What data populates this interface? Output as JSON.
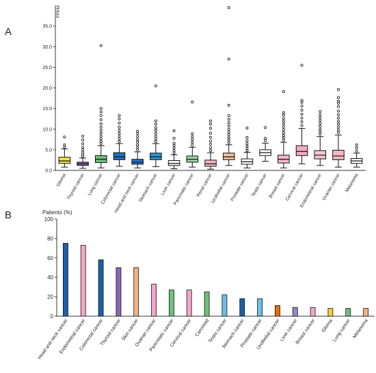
{
  "panels": {
    "a_label": "A",
    "b_label": "B"
  },
  "chart_data": [
    {
      "type": "box",
      "panel": "A",
      "ylabel": "FPKM",
      "ylim": [
        0,
        40
      ],
      "yticks": [
        "0.0",
        "5.0",
        "10.0",
        "15.0",
        "20.0",
        "25.0",
        "30.0",
        "35.0"
      ],
      "categories": [
        "Glioma",
        "Thyroid cancer",
        "Lung cancer",
        "Colorectal cancer",
        "Head and neck cancer",
        "Stomach cancer",
        "Liver cancer",
        "Pancreatic cancer",
        "Renal cancer",
        "Urothelial cancer",
        "Prostate cancer",
        "Testis cancer",
        "Breast cancer",
        "Cervical cancer",
        "Endometrial cancer",
        "Ovarian cancer",
        "Melanoma"
      ],
      "boxes": [
        {
          "min": 0.8,
          "q1": 1.7,
          "median": 2.3,
          "q3": 3.2,
          "max": 5.2,
          "outliers": [
            5.6,
            6.2,
            8.1
          ],
          "color": "#f2e24a"
        },
        {
          "min": 0.5,
          "q1": 1.2,
          "median": 1.6,
          "q3": 2.0,
          "max": 3.0,
          "outliers": [
            3.4,
            3.9,
            4.4,
            5.0,
            5.6,
            6.5,
            7.4,
            8.3
          ],
          "color": "#8c67b5"
        },
        {
          "min": 0.6,
          "q1": 1.9,
          "median": 2.7,
          "q3": 3.6,
          "max": 6.0,
          "outliers": [
            6.5,
            7.0,
            7.6,
            8.3,
            9.0,
            9.7,
            10.5,
            11.3,
            12.3,
            13.3,
            14.2,
            15.0,
            30.3
          ],
          "color": "#6fbf7d"
        },
        {
          "min": 1.0,
          "q1": 2.6,
          "median": 3.3,
          "q3": 4.3,
          "max": 6.5,
          "outliers": [
            7.0,
            7.6,
            8.3,
            9.0,
            9.7,
            10.5,
            11.5,
            12.5,
            13.3
          ],
          "color": "#1f6fc2"
        },
        {
          "min": 0.6,
          "q1": 1.5,
          "median": 2.0,
          "q3": 2.7,
          "max": 4.5,
          "outliers": [
            5.0,
            5.6,
            6.2,
            6.9,
            7.5,
            8.2,
            8.9,
            9.5
          ],
          "color": "#2a74c9"
        },
        {
          "min": 0.9,
          "q1": 2.6,
          "median": 3.3,
          "q3": 4.2,
          "max": 6.5,
          "outliers": [
            7.0,
            7.6,
            8.3,
            9.0,
            9.7,
            10.4,
            11.2,
            12.0,
            20.5
          ],
          "color": "#2596d4"
        },
        {
          "min": 0.4,
          "q1": 1.2,
          "median": 1.7,
          "q3": 2.4,
          "max": 3.8,
          "outliers": [
            4.2,
            4.8,
            5.4,
            6.0,
            6.6,
            7.8,
            9.6
          ],
          "color": "#ffffff"
        },
        {
          "min": 0.8,
          "q1": 2.0,
          "median": 2.7,
          "q3": 3.5,
          "max": 5.6,
          "outliers": [
            6.1,
            6.8,
            7.5,
            8.2,
            8.9,
            16.6
          ],
          "color": "#9cd4a3"
        },
        {
          "min": 0.3,
          "q1": 1.0,
          "median": 1.6,
          "q3": 2.5,
          "max": 4.3,
          "outliers": [
            4.8,
            5.5,
            6.3,
            7.1,
            8.0,
            9.0,
            10.2,
            11.2,
            12.0
          ],
          "color": "#f3b7c4"
        },
        {
          "min": 1.2,
          "q1": 2.6,
          "median": 3.3,
          "q3": 4.2,
          "max": 6.2,
          "outliers": [
            6.7,
            7.3,
            7.9,
            8.6,
            9.3,
            10.0,
            10.8,
            11.6,
            12.4,
            13.3,
            15.8,
            27.0,
            39.5
          ],
          "color": "#f4c29a"
        },
        {
          "min": 0.6,
          "q1": 1.5,
          "median": 2.1,
          "q3": 2.8,
          "max": 4.4,
          "outliers": [
            4.8,
            5.3,
            5.9,
            6.5,
            7.2,
            8.0,
            10.3
          ],
          "color": "#ffffff"
        },
        {
          "min": 2.2,
          "q1": 3.6,
          "median": 4.3,
          "q3": 5.0,
          "max": 6.6,
          "outliers": [
            7.2,
            7.8,
            10.4
          ],
          "color": "#ffffff"
        },
        {
          "min": 0.6,
          "q1": 1.8,
          "median": 2.7,
          "q3": 3.7,
          "max": 6.8,
          "outliers": [
            7.3,
            7.9,
            8.5,
            9.1,
            9.8,
            10.5,
            11.2,
            11.9,
            12.6,
            13.4,
            14.0,
            19.1
          ],
          "color": "#f3b7c4"
        },
        {
          "min": 1.6,
          "q1": 3.6,
          "median": 4.6,
          "q3": 6.0,
          "max": 10.2,
          "outliers": [
            10.9,
            11.8,
            12.7,
            13.6,
            14.6,
            15.6,
            16.5,
            17.0,
            25.5
          ],
          "color": "#f5a9c4"
        },
        {
          "min": 1.2,
          "q1": 2.8,
          "median": 3.7,
          "q3": 4.8,
          "max": 8.2,
          "outliers": [
            8.8,
            9.4,
            10.0,
            10.7,
            11.4,
            12.1,
            12.8,
            13.5,
            14.3
          ],
          "color": "#f7c6d0"
        },
        {
          "min": 0.8,
          "q1": 2.6,
          "median": 3.5,
          "q3": 4.9,
          "max": 8.6,
          "outliers": [
            9.2,
            9.8,
            10.5,
            11.2,
            11.9,
            12.7,
            13.5,
            14.4,
            15.5,
            16.3,
            16.8,
            17.7,
            19.6
          ],
          "color": "#f3b7c4"
        },
        {
          "min": 0.8,
          "q1": 1.7,
          "median": 2.3,
          "q3": 2.9,
          "max": 4.2,
          "outliers": [
            4.7,
            5.5,
            6.2
          ],
          "color": "#ffffff"
        }
      ]
    },
    {
      "type": "bar",
      "panel": "B",
      "ylabel": "Patients (%)",
      "ylim": [
        0,
        100
      ],
      "yticks": [
        "0",
        "20",
        "40",
        "60",
        "80",
        "100"
      ],
      "categories": [
        "Head and neck cancer",
        "Endometrial cancer",
        "Colorectal cancer",
        "Thyroid cancer",
        "Skin cancer",
        "Ovarian cancer",
        "Pancreatic cancer",
        "Cervical cancer",
        "Carcinoid",
        "Testis cancer",
        "Stomach cancer",
        "Prostate cancer",
        "Urothelial cancer",
        "Liver cancer",
        "Breast cancer",
        "Glioma",
        "Lung cancer",
        "Melanoma"
      ],
      "values": [
        75,
        73,
        58,
        50,
        50,
        33,
        27,
        27,
        25,
        22,
        18,
        18,
        11,
        9,
        9,
        8,
        8,
        8
      ],
      "colors": [
        "#1d5fa8",
        "#f3a6c8",
        "#1d5fa8",
        "#8c67b5",
        "#f4b183",
        "#f3a6c8",
        "#6fbf7d",
        "#f3a6c8",
        "#6fbf7d",
        "#6cc0e8",
        "#1d5fa8",
        "#6cc0e8",
        "#e46c0a",
        "#8c8ccf",
        "#f3a6c8",
        "#f2d230",
        "#6fbf7d",
        "#f4b183"
      ]
    }
  ]
}
